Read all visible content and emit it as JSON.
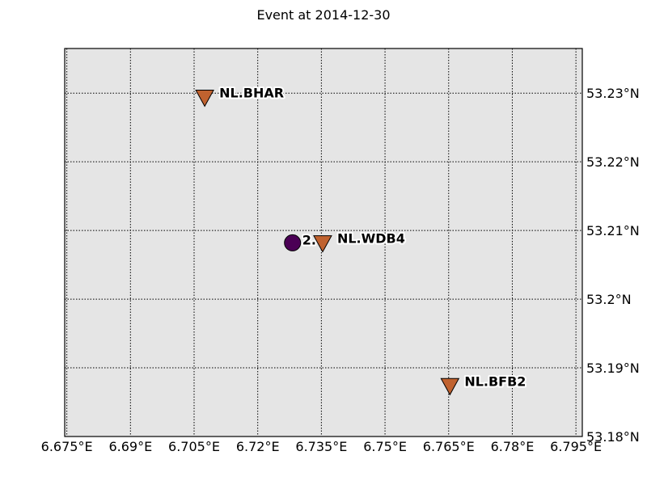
{
  "title": "Event at 2014-12-30",
  "colors": {
    "background": "#e5e5e5",
    "station": "#c0622f",
    "event": "#4b0055",
    "grid": "#000000"
  },
  "map": {
    "lon_range": [
      6.6745,
      6.7965
    ],
    "lat_range": [
      53.18,
      53.2365
    ],
    "grid": "dotted",
    "lon_ticks": [
      {
        "value": 6.675,
        "label": "6.675°E"
      },
      {
        "value": 6.69,
        "label": "6.69°E"
      },
      {
        "value": 6.705,
        "label": "6.705°E"
      },
      {
        "value": 6.72,
        "label": "6.72°E"
      },
      {
        "value": 6.735,
        "label": "6.735°E"
      },
      {
        "value": 6.75,
        "label": "6.75°E"
      },
      {
        "value": 6.765,
        "label": "6.765°E"
      },
      {
        "value": 6.78,
        "label": "6.78°E"
      },
      {
        "value": 6.795,
        "label": "6.795°E"
      }
    ],
    "lat_ticks": [
      {
        "value": 53.18,
        "label": "53.18°N"
      },
      {
        "value": 53.19,
        "label": "53.19°N"
      },
      {
        "value": 53.2,
        "label": "53.2°N"
      },
      {
        "value": 53.21,
        "label": "53.21°N"
      },
      {
        "value": 53.22,
        "label": "53.22°N"
      },
      {
        "value": 53.23,
        "label": "53.23°N"
      }
    ]
  },
  "stations": [
    {
      "name": "NL.BHAR",
      "lon": 6.7075,
      "lat": 53.2295
    },
    {
      "name": "NL.WDB4",
      "lon": 6.7353,
      "lat": 53.2083
    },
    {
      "name": "NL.BFB2",
      "lon": 6.7653,
      "lat": 53.1875
    }
  ],
  "event": {
    "label": "2.",
    "lon": 6.7282,
    "lat": 53.2082
  }
}
